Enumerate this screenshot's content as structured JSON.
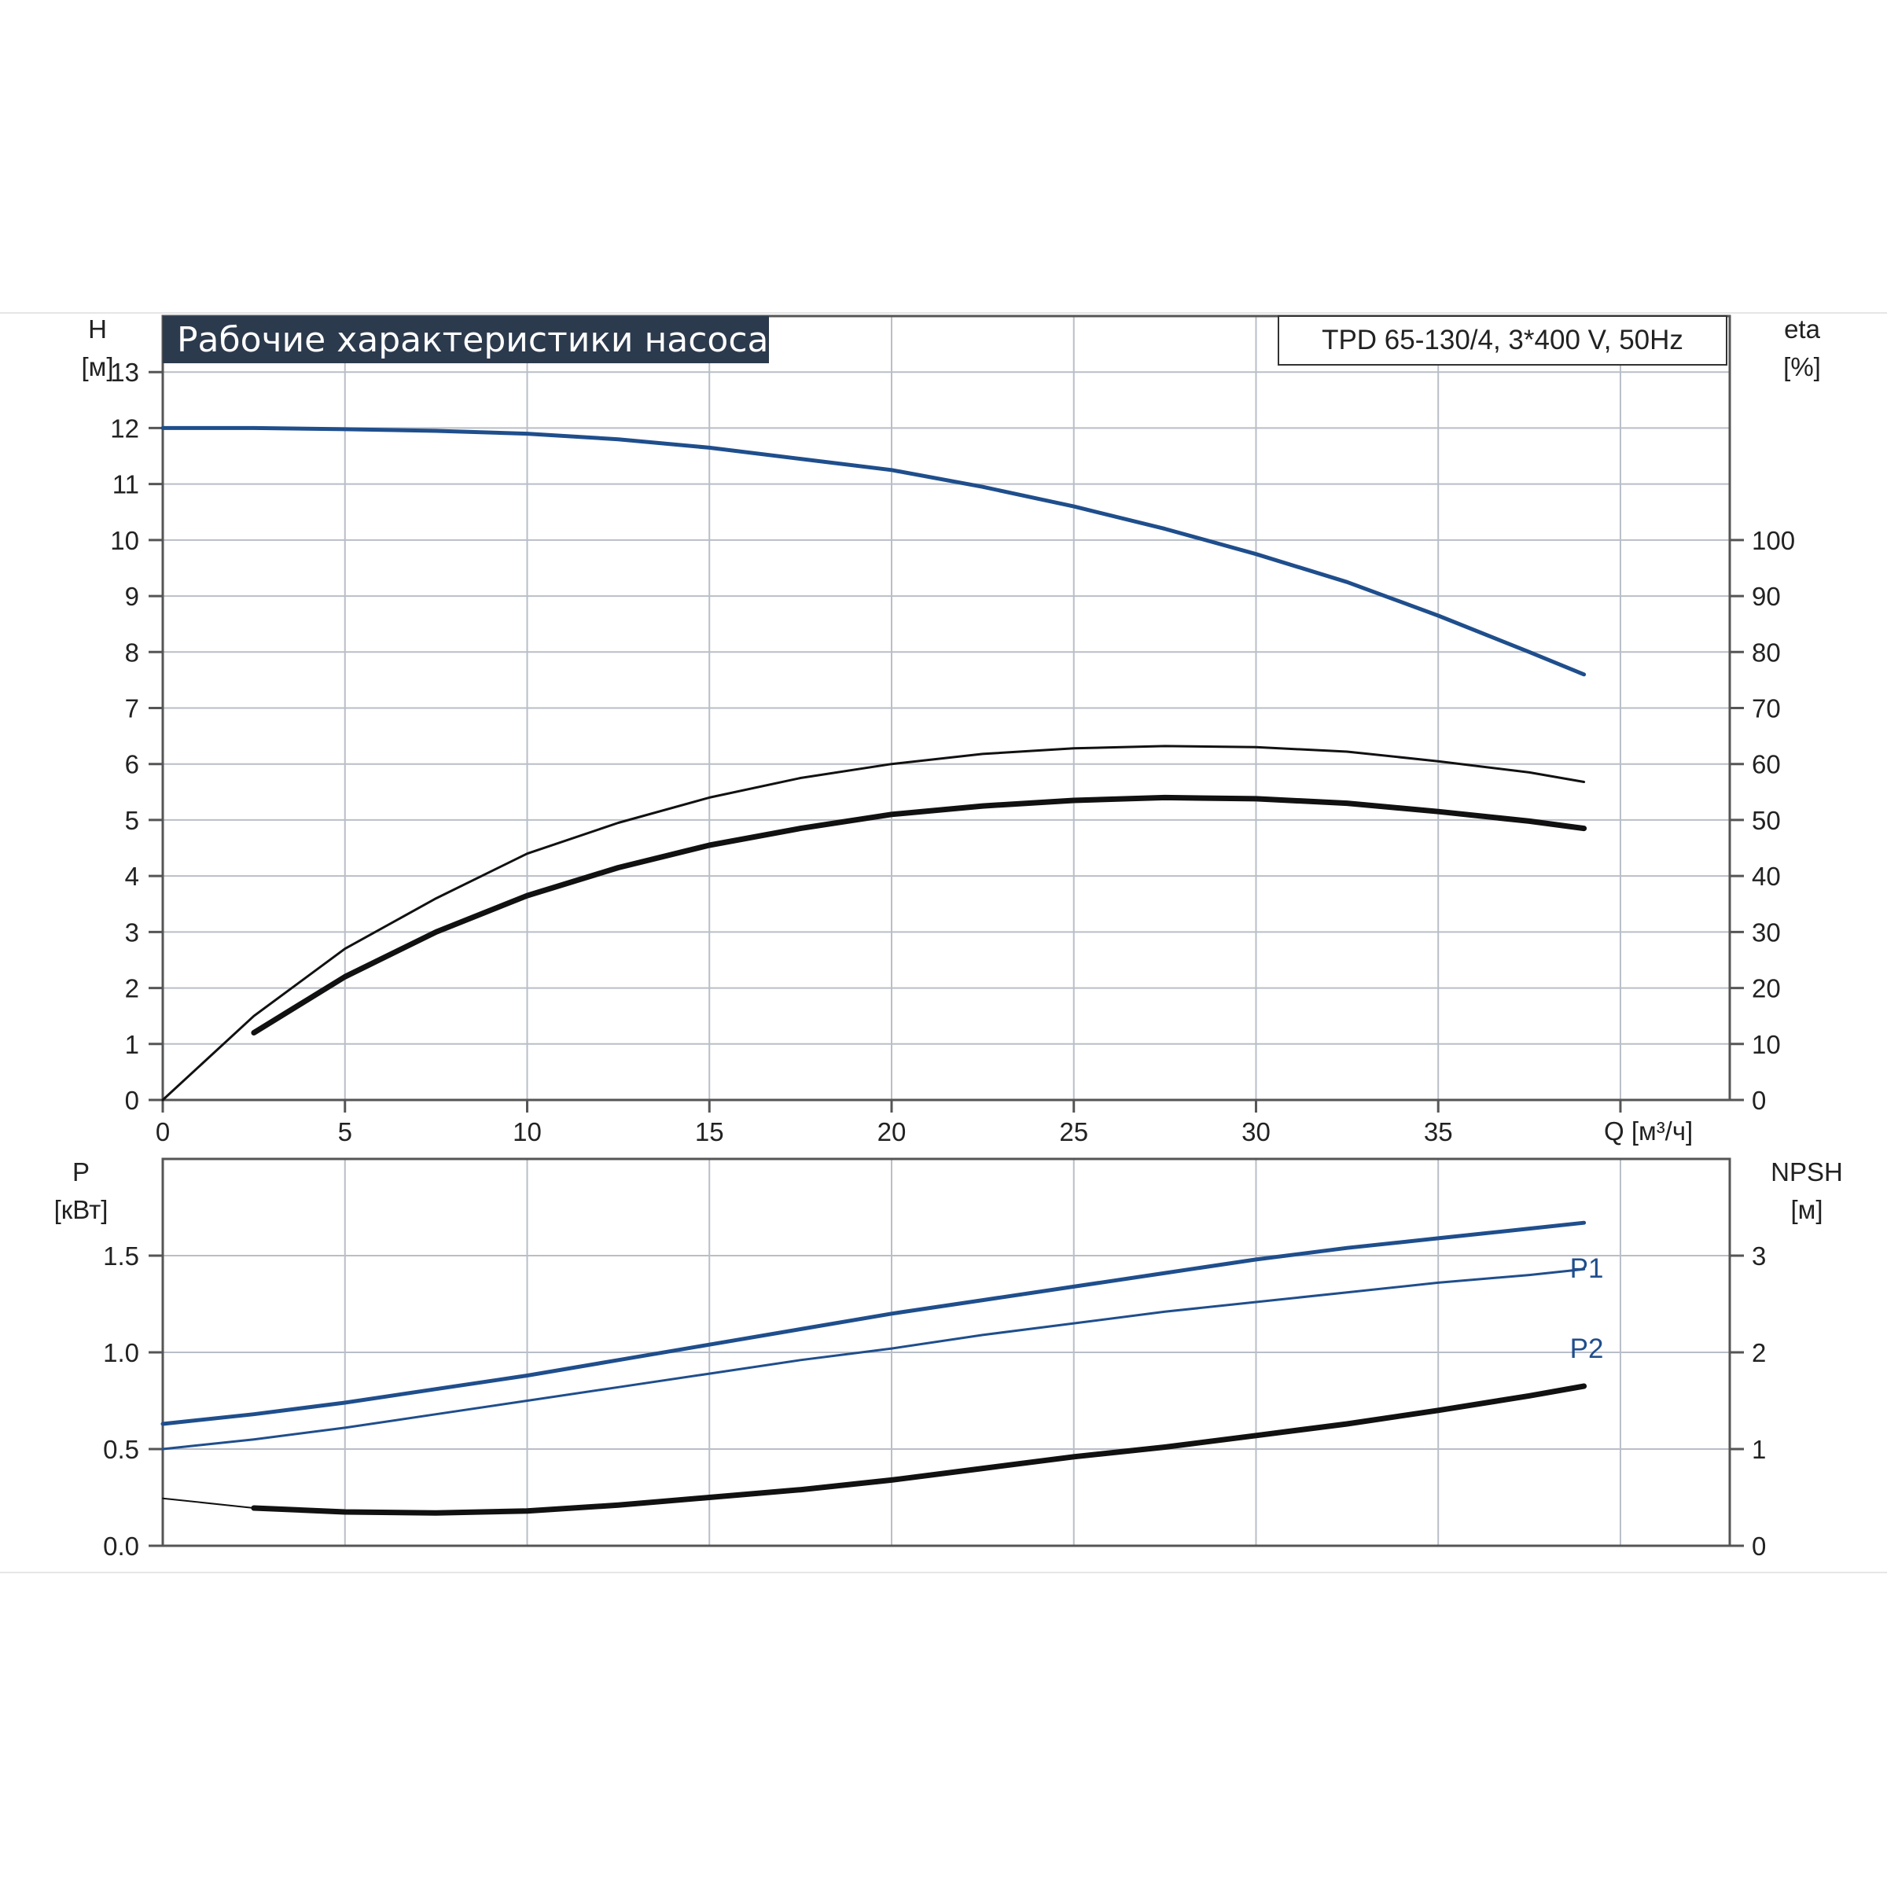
{
  "chart_data": [
    {
      "type": "line",
      "title": "Рабочие характеристики насоса",
      "model": "TPD 65-130/4, 3*400 V, 50Hz",
      "ylabel_left": "H",
      "ylabel_left_unit": "[м]",
      "ylabel_right": "eta",
      "ylabel_right_unit": "[%]",
      "xlabel": "Q [м³/ч]",
      "xlim": [
        0,
        43
      ],
      "ylim_left": [
        0,
        14
      ],
      "ylim_right": [
        0,
        140
      ],
      "x_ticks": [
        "0",
        "5",
        "10",
        "15",
        "20",
        "25",
        "30",
        "35"
      ],
      "y_left_ticks": [
        "0",
        "1",
        "2",
        "3",
        "4",
        "5",
        "6",
        "7",
        "8",
        "9",
        "10",
        "11",
        "12",
        "13"
      ],
      "y_right_ticks": [
        "0",
        "10",
        "20",
        "30",
        "40",
        "50",
        "60",
        "70",
        "80",
        "90",
        "100"
      ],
      "grid": true,
      "series": [
        {
          "axis": "left",
          "color": "#1f4e8c",
          "width": 5,
          "x": [
            0,
            2.5,
            5,
            7.5,
            10,
            12.5,
            15,
            17.5,
            20,
            22.5,
            25,
            27.5,
            30,
            32.5,
            35,
            37.5,
            39
          ],
          "y": [
            12.0,
            12.0,
            11.98,
            11.95,
            11.9,
            11.8,
            11.65,
            11.45,
            11.25,
            10.95,
            10.6,
            10.2,
            9.75,
            9.25,
            8.65,
            8.0,
            7.6
          ]
        },
        {
          "axis": "right",
          "color": "#111111",
          "width": 3,
          "x": [
            0,
            2.5,
            5,
            7.5,
            10,
            12.5,
            15,
            17.5,
            20,
            22.5,
            25,
            27.5,
            30,
            32.5,
            35,
            37.5,
            39
          ],
          "y": [
            0,
            15,
            27,
            36,
            44,
            49.5,
            54,
            57.5,
            60,
            61.8,
            62.8,
            63.2,
            63,
            62.2,
            60.5,
            58.5,
            56.8
          ]
        },
        {
          "axis": "right",
          "color": "#111111",
          "width": 7,
          "x": [
            2.5,
            5,
            7.5,
            10,
            12.5,
            15,
            17.5,
            20,
            22.5,
            25,
            27.5,
            30,
            32.5,
            35,
            37.5,
            39
          ],
          "y": [
            12,
            22,
            30,
            36.5,
            41.5,
            45.5,
            48.5,
            51,
            52.5,
            53.5,
            54,
            53.8,
            53,
            51.5,
            49.8,
            48.5
          ]
        }
      ]
    },
    {
      "type": "line",
      "ylabel_left": "P",
      "ylabel_left_unit": "[кВт]",
      "ylabel_right": "NPSH",
      "ylabel_right_unit": "[м]",
      "xlim": [
        0,
        43
      ],
      "ylim_left": [
        0,
        2.0
      ],
      "ylim_right": [
        0,
        4
      ],
      "y_left_ticks": [
        "0.0",
        "0.5",
        "1.0",
        "1.5"
      ],
      "y_right_ticks": [
        "0",
        "1",
        "2",
        "3"
      ],
      "grid": true,
      "series": [
        {
          "name": "P1",
          "axis": "left",
          "color": "#1f4e8c",
          "width": 5,
          "x": [
            0,
            2.5,
            5,
            7.5,
            10,
            12.5,
            15,
            17.5,
            20,
            22.5,
            25,
            27.5,
            30,
            32.5,
            35,
            37.5,
            39
          ],
          "y": [
            0.63,
            0.68,
            0.74,
            0.81,
            0.88,
            0.96,
            1.04,
            1.12,
            1.2,
            1.27,
            1.34,
            1.41,
            1.48,
            1.54,
            1.59,
            1.64,
            1.67
          ]
        },
        {
          "name": "P2",
          "axis": "left",
          "color": "#1f4e8c",
          "width": 3,
          "x": [
            0,
            2.5,
            5,
            7.5,
            10,
            12.5,
            15,
            17.5,
            20,
            22.5,
            25,
            27.5,
            30,
            32.5,
            35,
            37.5,
            39
          ],
          "y": [
            0.5,
            0.55,
            0.61,
            0.68,
            0.75,
            0.82,
            0.89,
            0.96,
            1.02,
            1.09,
            1.15,
            1.21,
            1.26,
            1.31,
            1.36,
            1.4,
            1.43
          ]
        },
        {
          "axis": "right",
          "color": "#111111",
          "width": 2,
          "x": [
            0,
            2.5
          ],
          "y": [
            0.49,
            0.39
          ]
        },
        {
          "axis": "right",
          "color": "#111111",
          "width": 7,
          "x": [
            2.5,
            5,
            7.5,
            10,
            12.5,
            15,
            17.5,
            20,
            22.5,
            25,
            27.5,
            30,
            32.5,
            35,
            37.5,
            39
          ],
          "y": [
            0.39,
            0.35,
            0.34,
            0.36,
            0.42,
            0.5,
            0.58,
            0.68,
            0.8,
            0.92,
            1.02,
            1.14,
            1.26,
            1.4,
            1.55,
            1.65
          ]
        }
      ]
    }
  ]
}
